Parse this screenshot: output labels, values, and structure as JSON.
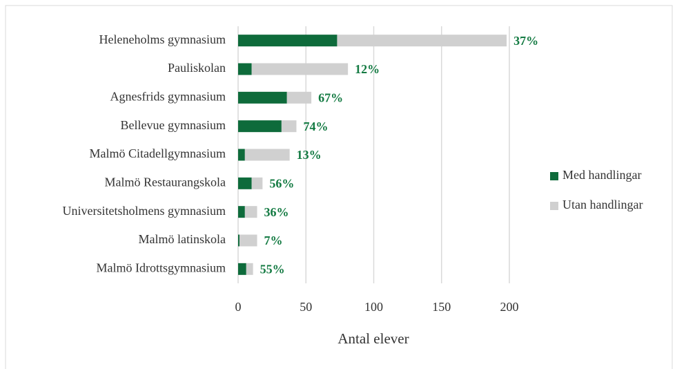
{
  "chart_data": {
    "type": "bar",
    "orientation": "horizontal",
    "stacked": true,
    "categories": [
      "Heleneholms gymnasium",
      "Pauliskolan",
      "Agnesfrids gymnasium",
      "Bellevue gymnasium",
      "Malmö Citadellgymnasium",
      "Malmö Restaurangskola",
      "Universitetsholmens gymnasium",
      "Malmö latinskola",
      "Malmö Idrottsgymnasium"
    ],
    "series": [
      {
        "name": "Med handlingar",
        "color": "#0e6b3b",
        "values": [
          73,
          10,
          36,
          32,
          5,
          10,
          5,
          1,
          6
        ]
      },
      {
        "name": "Utan handlingar",
        "color": "#d0d0d0",
        "values": [
          125,
          71,
          18,
          11,
          33,
          8,
          9,
          13,
          5
        ]
      }
    ],
    "annotations": [
      "37%",
      "12%",
      "67%",
      "74%",
      "13%",
      "56%",
      "36%",
      "7%",
      "55%"
    ],
    "xlabel": "Antal elever",
    "xlim": [
      0,
      200
    ],
    "xticks": [
      0,
      50,
      100,
      150,
      200
    ],
    "grid": true,
    "legend": "right"
  }
}
